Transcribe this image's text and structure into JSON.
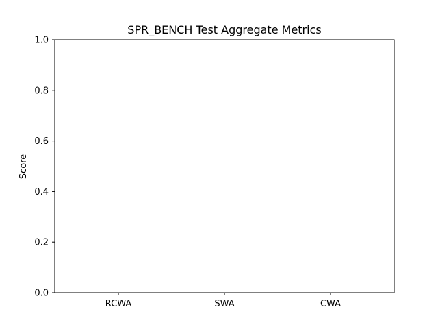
{
  "chart_data": {
    "type": "bar",
    "title": "SPR_BENCH Test Aggregate Metrics",
    "xlabel": "",
    "ylabel": "Score",
    "categories": [
      "RCWA",
      "SWA",
      "CWA"
    ],
    "values": [
      0,
      0,
      0
    ],
    "ylim": [
      0,
      1.0
    ],
    "yticks": [
      "0.0",
      "0.2",
      "0.4",
      "0.6",
      "0.8",
      "1.0"
    ],
    "bar_color": "#1f77b4",
    "grid": false,
    "legend": "none"
  }
}
